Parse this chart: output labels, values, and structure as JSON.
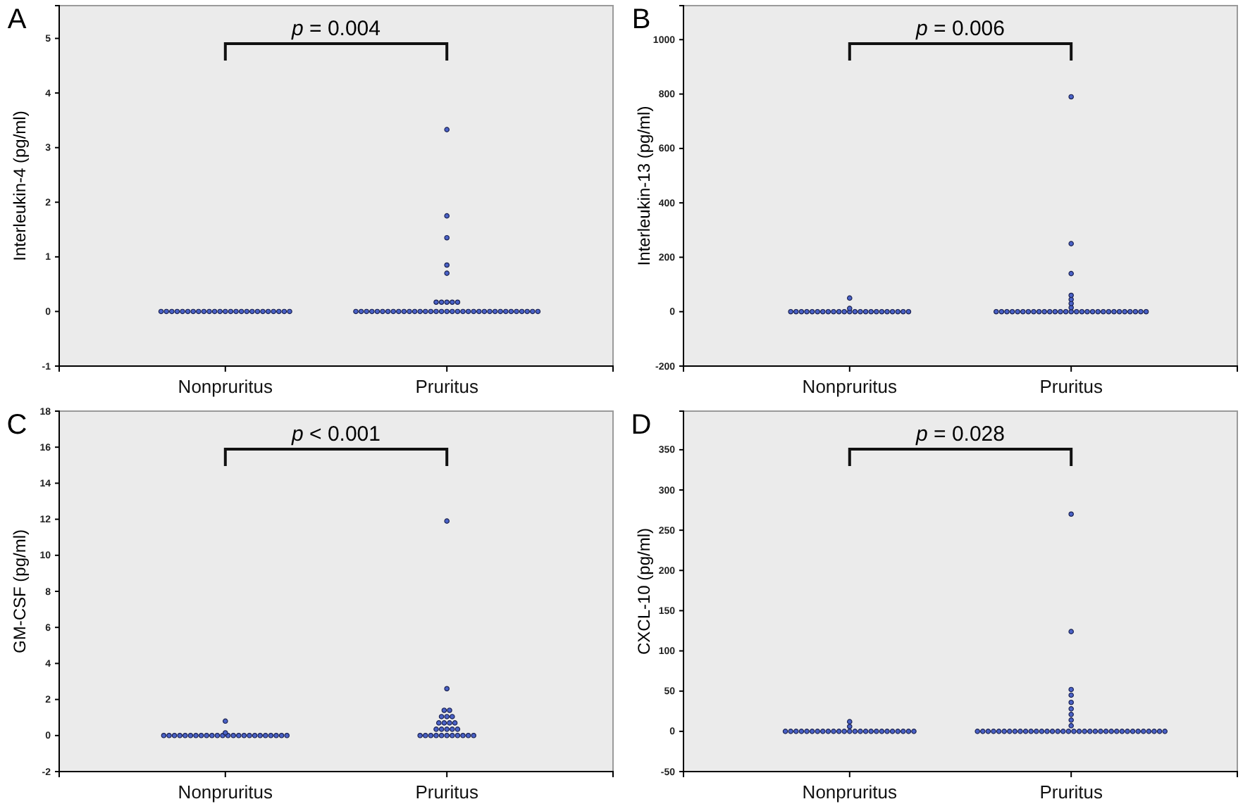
{
  "chart_data": [
    {
      "type": "scatter",
      "title": "A",
      "ylabel": "Interleukin-4 (pg/ml)",
      "categories": [
        "Nonpruritus",
        "Pruritus"
      ],
      "ylim": [
        -1,
        5.6
      ],
      "yticks": [
        -1,
        0,
        1,
        2,
        3,
        4,
        5
      ],
      "grid": false,
      "marker": "circle",
      "annotations": [
        "p = 0.004"
      ],
      "series": [
        {
          "color": "#4a62c8",
          "x": [
            "Nonpruritus",
            "Nonpruritus",
            "Nonpruritus",
            "Nonpruritus",
            "Nonpruritus",
            "Nonpruritus",
            "Nonpruritus",
            "Nonpruritus",
            "Nonpruritus",
            "Nonpruritus",
            "Nonpruritus",
            "Nonpruritus",
            "Nonpruritus",
            "Nonpruritus",
            "Nonpruritus",
            "Nonpruritus",
            "Nonpruritus",
            "Nonpruritus",
            "Nonpruritus",
            "Nonpruritus",
            "Nonpruritus",
            "Nonpruritus",
            "Nonpruritus",
            "Nonpruritus",
            "Nonpruritus",
            "Pruritus",
            "Pruritus",
            "Pruritus",
            "Pruritus",
            "Pruritus",
            "Pruritus",
            "Pruritus",
            "Pruritus",
            "Pruritus",
            "Pruritus",
            "Pruritus",
            "Pruritus",
            "Pruritus",
            "Pruritus",
            "Pruritus",
            "Pruritus",
            "Pruritus",
            "Pruritus",
            "Pruritus",
            "Pruritus",
            "Pruritus",
            "Pruritus",
            "Pruritus",
            "Pruritus",
            "Pruritus",
            "Pruritus",
            "Pruritus",
            "Pruritus",
            "Pruritus",
            "Pruritus",
            "Pruritus",
            "Pruritus",
            "Pruritus",
            "Pruritus",
            "Pruritus",
            "Pruritus",
            "Pruritus",
            "Pruritus",
            "Pruritus",
            "Pruritus",
            "Pruritus",
            "Pruritus",
            "Pruritus",
            "Pruritus",
            "Pruritus"
          ],
          "values": [
            0,
            0,
            0,
            0,
            0,
            0,
            0,
            0,
            0,
            0,
            0,
            0,
            0,
            0,
            0,
            0,
            0,
            0,
            0,
            0,
            0,
            0,
            0,
            0,
            0,
            0,
            0,
            0,
            0,
            0,
            0,
            0,
            0,
            0,
            0,
            0,
            0,
            0,
            0,
            0,
            0,
            0,
            0,
            0,
            0,
            0,
            0,
            0,
            0,
            0,
            0,
            0,
            0,
            0,
            0,
            0,
            0,
            0,
            0,
            0,
            0.17,
            0.17,
            0.17,
            0.17,
            0.17,
            0.7,
            0.85,
            1.35,
            1.75,
            3.33
          ]
        }
      ]
    },
    {
      "type": "scatter",
      "title": "B",
      "ylabel": "Interleukin-13 (pg/ml)",
      "categories": [
        "Nonpruritus",
        "Pruritus"
      ],
      "ylim": [
        -200,
        1125
      ],
      "yticks": [
        -200,
        0,
        200,
        400,
        600,
        800,
        1000
      ],
      "grid": false,
      "marker": "circle",
      "annotations": [
        "p = 0.006"
      ],
      "series": [
        {
          "color": "#4a62c8",
          "x": [
            "Nonpruritus",
            "Nonpruritus",
            "Nonpruritus",
            "Nonpruritus",
            "Nonpruritus",
            "Nonpruritus",
            "Nonpruritus",
            "Nonpruritus",
            "Nonpruritus",
            "Nonpruritus",
            "Nonpruritus",
            "Nonpruritus",
            "Nonpruritus",
            "Nonpruritus",
            "Nonpruritus",
            "Nonpruritus",
            "Nonpruritus",
            "Nonpruritus",
            "Nonpruritus",
            "Nonpruritus",
            "Nonpruritus",
            "Nonpruritus",
            "Nonpruritus",
            "Nonpruritus",
            "Nonpruritus",
            "Pruritus",
            "Pruritus",
            "Pruritus",
            "Pruritus",
            "Pruritus",
            "Pruritus",
            "Pruritus",
            "Pruritus",
            "Pruritus",
            "Pruritus",
            "Pruritus",
            "Pruritus",
            "Pruritus",
            "Pruritus",
            "Pruritus",
            "Pruritus",
            "Pruritus",
            "Pruritus",
            "Pruritus",
            "Pruritus",
            "Pruritus",
            "Pruritus",
            "Pruritus",
            "Pruritus",
            "Pruritus",
            "Pruritus",
            "Pruritus",
            "Pruritus",
            "Pruritus",
            "Pruritus",
            "Pruritus",
            "Pruritus",
            "Pruritus",
            "Pruritus",
            "Pruritus",
            "Pruritus"
          ],
          "values": [
            0,
            0,
            0,
            0,
            0,
            0,
            0,
            0,
            0,
            0,
            0,
            0,
            0,
            0,
            0,
            0,
            0,
            0,
            0,
            0,
            0,
            0,
            0,
            12,
            50,
            0,
            0,
            0,
            0,
            0,
            0,
            0,
            0,
            0,
            0,
            0,
            0,
            0,
            0,
            0,
            0,
            0,
            0,
            0,
            0,
            0,
            0,
            0,
            0,
            0,
            0,
            0,
            0,
            0,
            15,
            30,
            45,
            60,
            140,
            250,
            790
          ]
        }
      ]
    },
    {
      "type": "scatter",
      "title": "C",
      "ylabel": "GM-CSF (pg/ml)",
      "categories": [
        "Nonpruritus",
        "Pruritus"
      ],
      "ylim": [
        -2,
        18
      ],
      "yticks": [
        -2,
        0,
        2,
        4,
        6,
        8,
        10,
        12,
        14,
        16,
        18
      ],
      "grid": false,
      "marker": "circle",
      "annotations": [
        "p < 0.001"
      ],
      "series": [
        {
          "color": "#4a62c8",
          "x": [
            "Nonpruritus",
            "Nonpruritus",
            "Nonpruritus",
            "Nonpruritus",
            "Nonpruritus",
            "Nonpruritus",
            "Nonpruritus",
            "Nonpruritus",
            "Nonpruritus",
            "Nonpruritus",
            "Nonpruritus",
            "Nonpruritus",
            "Nonpruritus",
            "Nonpruritus",
            "Nonpruritus",
            "Nonpruritus",
            "Nonpruritus",
            "Nonpruritus",
            "Nonpruritus",
            "Nonpruritus",
            "Nonpruritus",
            "Nonpruritus",
            "Nonpruritus",
            "Nonpruritus",
            "Nonpruritus",
            "Nonpruritus",
            "Pruritus",
            "Pruritus",
            "Pruritus",
            "Pruritus",
            "Pruritus",
            "Pruritus",
            "Pruritus",
            "Pruritus",
            "Pruritus",
            "Pruritus",
            "Pruritus",
            "Pruritus",
            "Pruritus",
            "Pruritus",
            "Pruritus",
            "Pruritus",
            "Pruritus",
            "Pruritus",
            "Pruritus",
            "Pruritus",
            "Pruritus",
            "Pruritus",
            "Pruritus",
            "Pruritus",
            "Pruritus",
            "Pruritus",
            "Pruritus"
          ],
          "values": [
            0,
            0,
            0,
            0,
            0,
            0,
            0,
            0,
            0,
            0,
            0,
            0,
            0,
            0,
            0,
            0,
            0,
            0,
            0,
            0,
            0,
            0,
            0,
            0,
            0.15,
            0.8,
            0,
            0,
            0,
            0,
            0,
            0,
            0,
            0,
            0,
            0,
            0,
            0.35,
            0.35,
            0.35,
            0.35,
            0.35,
            0.7,
            0.7,
            0.7,
            0.7,
            1.05,
            1.05,
            1.05,
            1.4,
            1.4,
            2.6,
            11.9
          ]
        }
      ]
    },
    {
      "type": "scatter",
      "title": "D",
      "ylabel": "CXCL-10 (pg/ml)",
      "categories": [
        "Nonpruritus",
        "Pruritus"
      ],
      "ylim": [
        -50,
        398
      ],
      "yticks": [
        -50,
        0,
        50,
        100,
        150,
        200,
        250,
        300,
        350
      ],
      "grid": false,
      "marker": "circle",
      "annotations": [
        "p = 0.028"
      ],
      "series": [
        {
          "color": "#4a62c8",
          "x": [
            "Nonpruritus",
            "Nonpruritus",
            "Nonpruritus",
            "Nonpruritus",
            "Nonpruritus",
            "Nonpruritus",
            "Nonpruritus",
            "Nonpruritus",
            "Nonpruritus",
            "Nonpruritus",
            "Nonpruritus",
            "Nonpruritus",
            "Nonpruritus",
            "Nonpruritus",
            "Nonpruritus",
            "Nonpruritus",
            "Nonpruritus",
            "Nonpruritus",
            "Nonpruritus",
            "Nonpruritus",
            "Nonpruritus",
            "Nonpruritus",
            "Nonpruritus",
            "Nonpruritus",
            "Nonpruritus",
            "Nonpruritus",
            "Nonpruritus",
            "Pruritus",
            "Pruritus",
            "Pruritus",
            "Pruritus",
            "Pruritus",
            "Pruritus",
            "Pruritus",
            "Pruritus",
            "Pruritus",
            "Pruritus",
            "Pruritus",
            "Pruritus",
            "Pruritus",
            "Pruritus",
            "Pruritus",
            "Pruritus",
            "Pruritus",
            "Pruritus",
            "Pruritus",
            "Pruritus",
            "Pruritus",
            "Pruritus",
            "Pruritus",
            "Pruritus",
            "Pruritus",
            "Pruritus",
            "Pruritus",
            "Pruritus",
            "Pruritus",
            "Pruritus",
            "Pruritus",
            "Pruritus",
            "Pruritus",
            "Pruritus",
            "Pruritus",
            "Pruritus",
            "Pruritus",
            "Pruritus",
            "Pruritus",
            "Pruritus",
            "Pruritus",
            "Pruritus",
            "Pruritus",
            "Pruritus",
            "Pruritus"
          ],
          "values": [
            0,
            0,
            0,
            0,
            0,
            0,
            0,
            0,
            0,
            0,
            0,
            0,
            0,
            0,
            0,
            0,
            0,
            0,
            0,
            0,
            0,
            0,
            0,
            0,
            0,
            6,
            12,
            0,
            0,
            0,
            0,
            0,
            0,
            0,
            0,
            0,
            0,
            0,
            0,
            0,
            0,
            0,
            0,
            0,
            0,
            0,
            0,
            0,
            0,
            0,
            0,
            0,
            0,
            0,
            0,
            0,
            0,
            0,
            0,
            0,
            0,
            0,
            0,
            7,
            14,
            21,
            28,
            36,
            45,
            52,
            124,
            270
          ]
        }
      ]
    }
  ]
}
